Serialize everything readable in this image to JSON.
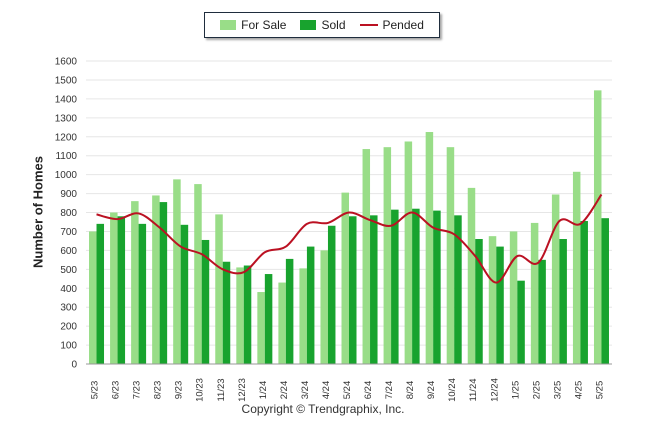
{
  "legend": {
    "for_sale": "For Sale",
    "sold": "Sold",
    "pended": "Pended"
  },
  "colors": {
    "for_sale": "#99dd88",
    "sold": "#18a32e",
    "pended": "#bb1122",
    "grid": "#e6e6e6",
    "axis": "#999999"
  },
  "footer": {
    "copyright": "Copyright © Trendgraphix, Inc."
  },
  "chart_data": {
    "type": "bar",
    "ylabel": "Number of Homes",
    "ylim": [
      0,
      1600
    ],
    "yticks": [
      0,
      100,
      200,
      300,
      400,
      500,
      600,
      700,
      800,
      900,
      1000,
      1100,
      1200,
      1300,
      1400,
      1500,
      1600
    ],
    "grid": true,
    "legend_position": "top-center",
    "categories": [
      "5/23",
      "6/23",
      "7/23",
      "8/23",
      "9/23",
      "10/23",
      "11/23",
      "12/23",
      "1/24",
      "2/24",
      "3/24",
      "4/24",
      "5/24",
      "6/24",
      "7/24",
      "8/24",
      "9/24",
      "10/24",
      "11/24",
      "12/24",
      "1/25",
      "2/25",
      "3/25",
      "4/25",
      "5/25"
    ],
    "series": [
      {
        "name": "For Sale",
        "type": "bar",
        "values": [
          700,
          800,
          860,
          890,
          975,
          950,
          790,
          510,
          380,
          430,
          505,
          600,
          905,
          1135,
          1145,
          1175,
          1225,
          1145,
          930,
          675,
          700,
          745,
          895,
          1015,
          1445
        ]
      },
      {
        "name": "Sold",
        "type": "bar",
        "values": [
          740,
          780,
          740,
          855,
          735,
          655,
          540,
          520,
          475,
          555,
          620,
          730,
          780,
          785,
          815,
          820,
          810,
          785,
          660,
          620,
          440,
          550,
          660,
          755,
          770
        ]
      },
      {
        "name": "Pended",
        "type": "line",
        "values": [
          790,
          765,
          795,
          720,
          620,
          580,
          500,
          485,
          590,
          620,
          740,
          745,
          800,
          760,
          730,
          800,
          720,
          685,
          570,
          430,
          570,
          535,
          755,
          740,
          895
        ]
      }
    ]
  }
}
